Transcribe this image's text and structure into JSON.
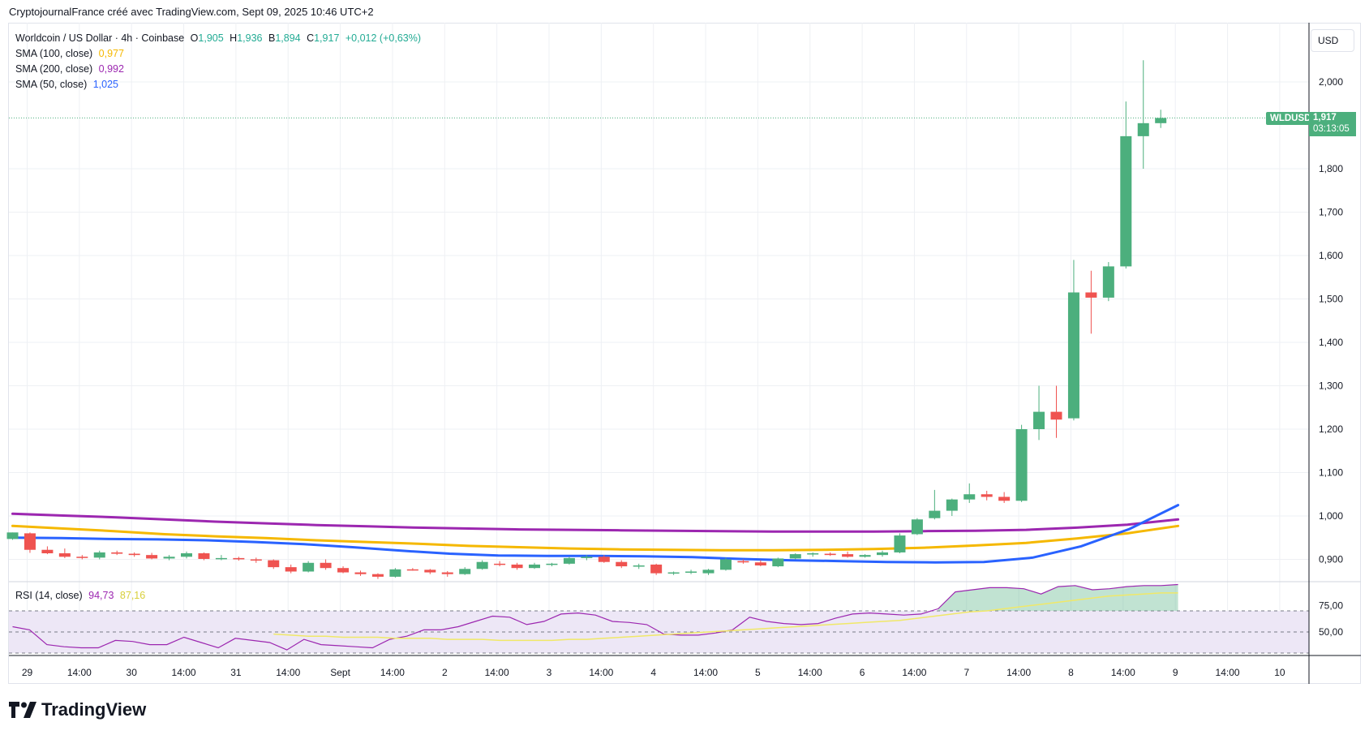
{
  "header": {
    "caption": "CryptojournalFrance créé avec TradingView.com, Sept 09, 2025 10:46 UTC+2"
  },
  "legend": {
    "symbol_line": "Worldcoin / US Dollar · 4h · Coinbase",
    "open_label": "O",
    "open": "1,905",
    "high_label": "H",
    "high": "1,936",
    "low_label": "B",
    "low": "1,894",
    "close_label": "C",
    "close": "1,917",
    "change": "+0,012 (+0,63%)",
    "sma100_label": "SMA (100, close)",
    "sma100_value": "0,977",
    "sma200_label": "SMA (200, close)",
    "sma200_value": "0,992",
    "sma50_label": "SMA (50, close)",
    "sma50_value": "1,025",
    "rsi_label": "RSI (14, close)",
    "rsi_value": "94,73",
    "rsi_ma_value": "87,16"
  },
  "currency_button": "USD",
  "last_price_tag": {
    "symbol": "WLDUSD",
    "price": "1,917",
    "countdown": "03:13:05"
  },
  "logo": {
    "text": "TradingView"
  },
  "colors": {
    "up": "#4caf7d",
    "down": "#ef5350",
    "sma50": "#2962ff",
    "sma100": "#f5b800",
    "sma200": "#9c27b0",
    "rsi": "#9c27b0",
    "rsi_ma": "#f0e868",
    "rsi_band": "#ede7f6",
    "grid": "#eef0f4"
  },
  "chart_data": {
    "type": "candlestick",
    "timeframe": "4h",
    "price_axis": {
      "min": 0.84,
      "max": 2.1,
      "ticks": [
        "2,000",
        "1,800",
        "1,700",
        "1,600",
        "1,500",
        "1,400",
        "1,300",
        "1,200",
        "1,100",
        "1,000",
        "0,900"
      ],
      "tick_values": [
        2.0,
        1.8,
        1.7,
        1.6,
        1.5,
        1.4,
        1.3,
        1.2,
        1.1,
        1.0,
        0.9
      ]
    },
    "rsi_axis": {
      "ticks": [
        "75,00",
        "50,00"
      ],
      "tick_values": [
        75,
        50
      ],
      "band": [
        70,
        30
      ]
    },
    "time_axis": {
      "labels": [
        "29",
        "14:00",
        "30",
        "14:00",
        "31",
        "14:00",
        "Sept",
        "14:00",
        "2",
        "14:00",
        "3",
        "14:00",
        "4",
        "14:00",
        "5",
        "14:00",
        "6",
        "14:00",
        "7",
        "14:00",
        "8",
        "14:00",
        "9",
        "14:00",
        "10"
      ],
      "label_candle_index": [
        0,
        3,
        6,
        9,
        12,
        15,
        18,
        21,
        24,
        27,
        30,
        33,
        36,
        39,
        42,
        45,
        48,
        51,
        54,
        57,
        60,
        63,
        66,
        69,
        72
      ]
    },
    "candles": [
      [
        0.947,
        0.962,
        0.945,
        0.962
      ],
      [
        0.96,
        0.962,
        0.915,
        0.922
      ],
      [
        0.922,
        0.93,
        0.912,
        0.914
      ],
      [
        0.914,
        0.925,
        0.903,
        0.906
      ],
      [
        0.906,
        0.91,
        0.9,
        0.904
      ],
      [
        0.904,
        0.92,
        0.9,
        0.916
      ],
      [
        0.916,
        0.92,
        0.91,
        0.913
      ],
      [
        0.913,
        0.916,
        0.906,
        0.91
      ],
      [
        0.91,
        0.915,
        0.9,
        0.902
      ],
      [
        0.902,
        0.91,
        0.898,
        0.906
      ],
      [
        0.906,
        0.918,
        0.902,
        0.914
      ],
      [
        0.914,
        0.916,
        0.898,
        0.901
      ],
      [
        0.901,
        0.91,
        0.898,
        0.903
      ],
      [
        0.903,
        0.906,
        0.897,
        0.9
      ],
      [
        0.9,
        0.904,
        0.892,
        0.898
      ],
      [
        0.898,
        0.9,
        0.878,
        0.882
      ],
      [
        0.882,
        0.888,
        0.868,
        0.872
      ],
      [
        0.872,
        0.896,
        0.87,
        0.892
      ],
      [
        0.892,
        0.9,
        0.876,
        0.88
      ],
      [
        0.88,
        0.884,
        0.868,
        0.87
      ],
      [
        0.87,
        0.874,
        0.862,
        0.866
      ],
      [
        0.866,
        0.868,
        0.855,
        0.86
      ],
      [
        0.86,
        0.88,
        0.858,
        0.877
      ],
      [
        0.877,
        0.88,
        0.874,
        0.876
      ],
      [
        0.876,
        0.878,
        0.866,
        0.87
      ],
      [
        0.87,
        0.873,
        0.86,
        0.866
      ],
      [
        0.866,
        0.882,
        0.864,
        0.878
      ],
      [
        0.878,
        0.898,
        0.876,
        0.894
      ],
      [
        0.89,
        0.896,
        0.884,
        0.888
      ],
      [
        0.888,
        0.892,
        0.876,
        0.88
      ],
      [
        0.88,
        0.892,
        0.878,
        0.888
      ],
      [
        0.888,
        0.892,
        0.884,
        0.89
      ],
      [
        0.89,
        0.906,
        0.888,
        0.903
      ],
      [
        0.903,
        0.91,
        0.898,
        0.906
      ],
      [
        0.906,
        0.91,
        0.892,
        0.894
      ],
      [
        0.894,
        0.898,
        0.88,
        0.884
      ],
      [
        0.884,
        0.89,
        0.878,
        0.886
      ],
      [
        0.888,
        0.89,
        0.864,
        0.868
      ],
      [
        0.868,
        0.872,
        0.864,
        0.87
      ],
      [
        0.87,
        0.876,
        0.866,
        0.872
      ],
      [
        0.868,
        0.878,
        0.864,
        0.876
      ],
      [
        0.876,
        0.904,
        0.874,
        0.9
      ],
      [
        0.896,
        0.9,
        0.89,
        0.893
      ],
      [
        0.893,
        0.898,
        0.884,
        0.886
      ],
      [
        0.884,
        0.904,
        0.882,
        0.902
      ],
      [
        0.902,
        0.914,
        0.9,
        0.912
      ],
      [
        0.912,
        0.916,
        0.906,
        0.914
      ],
      [
        0.913,
        0.916,
        0.908,
        0.91
      ],
      [
        0.912,
        0.918,
        0.904,
        0.906
      ],
      [
        0.906,
        0.912,
        0.904,
        0.91
      ],
      [
        0.91,
        0.92,
        0.906,
        0.916
      ],
      [
        0.916,
        0.96,
        0.914,
        0.955
      ],
      [
        0.958,
        0.995,
        0.956,
        0.992
      ],
      [
        0.995,
        1.06,
        0.992,
        1.012
      ],
      [
        1.012,
        1.04,
        1.0,
        1.038
      ],
      [
        1.038,
        1.075,
        1.03,
        1.05
      ],
      [
        1.05,
        1.058,
        1.036,
        1.044
      ],
      [
        1.044,
        1.055,
        1.03,
        1.035
      ],
      [
        1.035,
        1.21,
        1.032,
        1.2
      ],
      [
        1.2,
        1.3,
        1.175,
        1.24
      ],
      [
        1.24,
        1.3,
        1.18,
        1.222
      ],
      [
        1.225,
        1.59,
        1.22,
        1.515
      ],
      [
        1.515,
        1.565,
        1.42,
        1.503
      ],
      [
        1.503,
        1.585,
        1.495,
        1.575
      ],
      [
        1.575,
        1.955,
        1.57,
        1.875
      ],
      [
        1.875,
        2.05,
        1.8,
        1.905
      ],
      [
        1.905,
        1.936,
        1.894,
        1.917
      ]
    ],
    "sma50": [
      0.95,
      0.949,
      0.947,
      0.946,
      0.944,
      0.94,
      0.935,
      0.928,
      0.92,
      0.913,
      0.909,
      0.908,
      0.908,
      0.907,
      0.905,
      0.901,
      0.898,
      0.896,
      0.894,
      0.893,
      0.894,
      0.904,
      0.93,
      0.97,
      1.025
    ],
    "sma100": [
      0.977,
      0.971,
      0.965,
      0.958,
      0.953,
      0.949,
      0.944,
      0.94,
      0.936,
      0.931,
      0.928,
      0.925,
      0.923,
      0.922,
      0.921,
      0.921,
      0.922,
      0.924,
      0.927,
      0.932,
      0.938,
      0.948,
      0.96,
      0.977
    ],
    "sma200": [
      1.005,
      1.001,
      0.997,
      0.992,
      0.987,
      0.983,
      0.979,
      0.976,
      0.973,
      0.971,
      0.969,
      0.968,
      0.967,
      0.966,
      0.965,
      0.964,
      0.964,
      0.964,
      0.965,
      0.966,
      0.968,
      0.973,
      0.98,
      0.992
    ],
    "rsi": [
      55,
      52,
      38,
      36,
      35,
      35,
      42,
      41,
      38,
      38,
      45,
      40,
      35,
      44,
      42,
      40,
      33,
      43,
      38,
      37,
      36,
      35,
      43,
      46,
      52,
      52,
      55,
      60,
      65,
      64,
      57,
      60,
      67,
      68,
      66,
      60,
      59,
      57,
      48,
      47,
      47,
      49,
      52,
      64,
      60,
      58,
      57,
      58,
      63,
      67,
      68,
      67,
      66,
      67,
      72,
      88,
      90,
      92,
      92,
      91,
      86,
      93,
      94,
      90,
      91,
      93,
      94,
      94,
      95
    ],
    "rsi_ma": [
      48,
      47,
      46,
      46,
      45,
      45,
      45,
      44,
      44,
      44,
      43,
      43,
      43,
      42,
      42,
      42,
      42,
      43,
      43,
      44,
      45,
      46,
      47,
      48,
      49,
      50,
      51,
      52,
      53,
      54,
      55,
      56,
      57,
      58,
      59,
      60,
      61,
      63,
      65,
      67,
      69,
      70,
      72,
      74,
      76,
      78,
      80,
      82,
      84,
      85,
      86,
      87,
      87
    ]
  }
}
